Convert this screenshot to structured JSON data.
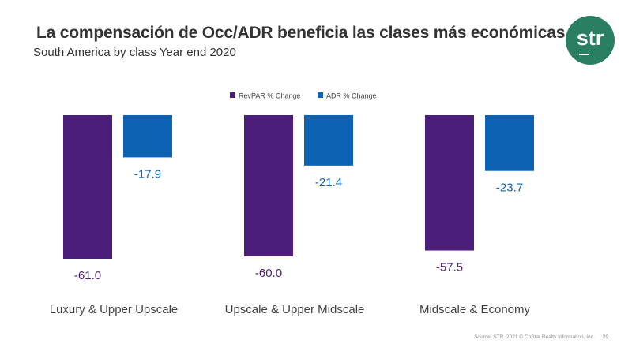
{
  "header": {
    "title": "La compensación de Occ/ADR beneficia las clases más económicas",
    "subtitle": "South America by class Year end 2020",
    "logo_text": "str"
  },
  "footer": {
    "source": "Source: STR. 2021 © CoStar Realty Information, Inc.",
    "page_number": "29"
  },
  "colors": {
    "revpar": "#4b1e7a",
    "adr": "#0c63b4",
    "brand": "#2a7f62"
  },
  "chart_data": {
    "type": "bar",
    "title": "La compensación de Occ/ADR beneficia las clases más económicas",
    "subtitle": "South America by class Year end 2020",
    "categories": [
      "Luxury & Upper Upscale",
      "Upscale & Upper Midscale",
      "Midscale & Economy"
    ],
    "series": [
      {
        "name": "RevPAR % Change",
        "values": [
          -61.0,
          -60.0,
          -57.5
        ],
        "labels": [
          "-61.0",
          "-60.0",
          "-57.5"
        ]
      },
      {
        "name": "ADR % Change",
        "values": [
          -17.9,
          -21.4,
          -23.7
        ],
        "labels": [
          "-17.9",
          "-21.4",
          "-23.7"
        ]
      }
    ],
    "ylim": [
      -61.0,
      0
    ],
    "legend": "top-center",
    "grid": false,
    "xlabel": "",
    "ylabel": ""
  }
}
